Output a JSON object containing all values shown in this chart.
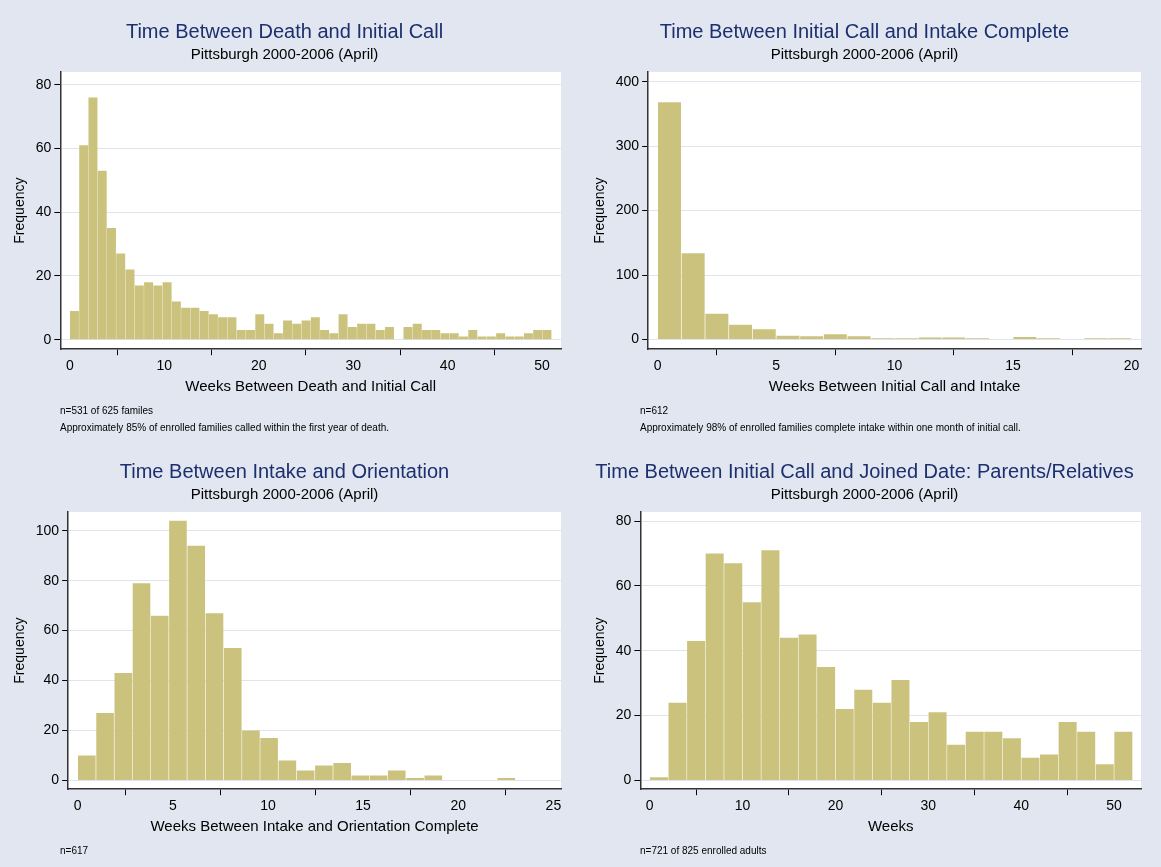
{
  "chart_data": [
    {
      "type": "histogram",
      "title": "Time Between Death and Initial Call",
      "subtitle": "Pittsburgh 2000-2006 (April)",
      "xlabel": "Weeks Between Death and Initial Call",
      "ylabel": "Frequency",
      "color": "#cbc37d",
      "bins": [
        0,
        0.98,
        1.96,
        2.94,
        3.92,
        4.9,
        5.88,
        6.87,
        7.85,
        8.83,
        9.81,
        10.79,
        11.77,
        12.75,
        13.73,
        14.71,
        15.69,
        16.67,
        17.65,
        18.63,
        19.62,
        20.6,
        21.58,
        22.56,
        23.54,
        24.52,
        25.5,
        26.48,
        27.46,
        28.44,
        29.42,
        30.4,
        31.38,
        32.37,
        33.35,
        34.33,
        35.31,
        36.29,
        37.27,
        38.25,
        39.23,
        40.21,
        41.19,
        42.17,
        43.15,
        44.13,
        45.12,
        46.1,
        47.08,
        48.06,
        49.04,
        50.02,
        51
      ],
      "values": [
        9,
        61,
        76,
        53,
        35,
        27,
        22,
        17,
        18,
        17,
        18,
        12,
        10,
        10,
        9,
        8,
        7,
        7,
        3,
        3,
        8,
        5,
        2,
        6,
        5,
        6,
        7,
        3,
        2,
        8,
        4,
        5,
        5,
        3,
        4,
        0,
        4,
        5,
        3,
        3,
        2,
        2,
        1,
        3,
        1,
        1,
        2,
        1,
        1,
        2,
        3,
        3
      ],
      "xlim": [
        -1,
        52
      ],
      "xticks": [
        0,
        10,
        20,
        30,
        40,
        50
      ],
      "ylim": [
        -3,
        84
      ],
      "yticks": [
        0,
        20,
        40,
        60,
        80
      ],
      "grid": "y",
      "annotations": [
        "n=531 of 625 familes",
        "Approximately 85% of enrolled families called within the first year of death."
      ]
    },
    {
      "type": "histogram",
      "title": "Time Between Initial Call and Intake Complete",
      "subtitle": "Pittsburgh 2000-2006 (April)",
      "xlabel": "Weeks Between Initial Call and Intake",
      "ylabel": "Frequency",
      "color": "#cbc37d",
      "bins": [
        0,
        1,
        2,
        3,
        4,
        5,
        6,
        7,
        8,
        9,
        10,
        11,
        12,
        13,
        14,
        15,
        16,
        17,
        18,
        19,
        20
      ],
      "values": [
        368,
        134,
        40,
        23,
        16,
        6,
        5,
        8,
        5,
        2,
        2,
        3,
        3,
        2,
        0,
        4,
        2,
        0,
        2,
        2
      ],
      "xlim": [
        -0.4,
        20.4
      ],
      "xticks": [
        0,
        5,
        10,
        15,
        20
      ],
      "ylim": [
        -15,
        415
      ],
      "yticks": [
        0,
        100,
        200,
        300,
        400
      ],
      "grid": "y",
      "annotations": [
        "n=612",
        "Approximately 98% of enrolled families complete intake within one month of initial call."
      ]
    },
    {
      "type": "histogram",
      "title": "Time Between Intake and Orientation",
      "subtitle": "Pittsburgh 2000-2006 (April)",
      "xlabel": "Weeks Between Intake and Orientation Complete",
      "ylabel": "Frequency",
      "color": "#cbc37d",
      "bins": [
        0,
        0.96,
        1.92,
        2.88,
        3.83,
        4.79,
        5.75,
        6.71,
        7.67,
        8.63,
        9.58,
        10.54,
        11.5,
        12.46,
        13.42,
        14.38,
        15.33,
        16.29,
        17.25,
        18.21,
        19.17,
        20.13,
        21.08,
        22.04,
        23
      ],
      "values": [
        10,
        27,
        43,
        79,
        66,
        104,
        94,
        67,
        53,
        20,
        17,
        8,
        4,
        6,
        7,
        2,
        2,
        4,
        1,
        2,
        0,
        0,
        0,
        1
      ],
      "xlim": [
        -0.5,
        25.4
      ],
      "xticks": [
        0,
        5,
        10,
        15,
        20,
        25
      ],
      "ylim": [
        -3.5,
        107.5
      ],
      "yticks": [
        0,
        20,
        40,
        60,
        80,
        100
      ],
      "grid": "y",
      "annotations": [
        "n=617"
      ]
    },
    {
      "type": "histogram",
      "title": "Time Between Initial Call and Joined Date: Parents/Relatives",
      "subtitle": "Pittsburgh 2000-2006 (April)",
      "xlabel": "Weeks",
      "ylabel": "Frequency",
      "color": "#cbc37d",
      "bins": [
        0,
        2,
        4,
        6,
        8,
        10,
        12,
        14,
        16,
        18,
        20,
        22,
        24,
        26,
        28,
        30,
        32,
        34,
        36,
        38,
        40,
        42,
        44,
        46,
        48,
        50,
        52
      ],
      "values": [
        1,
        24,
        43,
        70,
        67,
        55,
        71,
        44,
        45,
        35,
        22,
        28,
        24,
        31,
        18,
        21,
        11,
        15,
        15,
        13,
        7,
        8,
        18,
        15,
        5,
        15
      ],
      "xlim": [
        -1,
        52.9
      ],
      "xticks": [
        0,
        10,
        20,
        30,
        40,
        50
      ],
      "ylim": [
        -2.7,
        82.8
      ],
      "yticks": [
        0,
        20,
        40,
        60,
        80
      ],
      "grid": "y",
      "annotations": [
        "n=721 of 825 enrolled adults"
      ]
    }
  ]
}
